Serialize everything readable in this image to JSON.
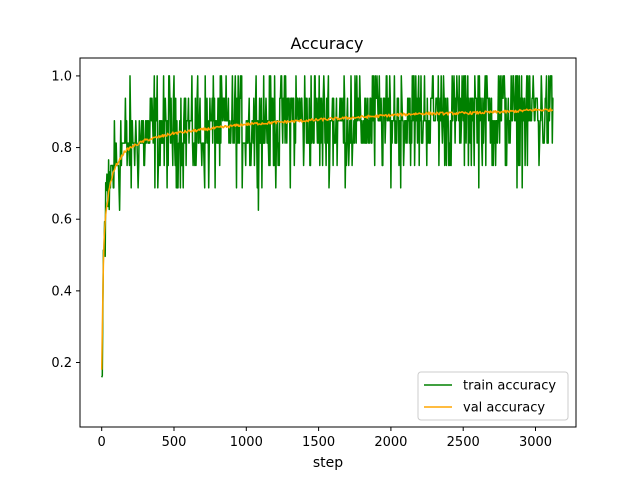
{
  "chart_data": {
    "type": "line",
    "title": "Accuracy",
    "xlabel": "step",
    "ylabel": "",
    "xlim": [
      -150,
      3280
    ],
    "ylim": [
      0.02,
      1.05
    ],
    "xticks": [
      0,
      500,
      1000,
      1500,
      2000,
      2500,
      3000
    ],
    "yticks": [
      0.2,
      0.4,
      0.6,
      0.8,
      1.0
    ],
    "xtick_labels": [
      "0",
      "500",
      "1000",
      "1500",
      "2000",
      "2500",
      "3000"
    ],
    "ytick_labels": [
      "0.2",
      "0.4",
      "0.6",
      "0.8",
      "1.0"
    ],
    "grid": false,
    "legend_position": "lower-right",
    "series": [
      {
        "name": "train accuracy",
        "color": "#008000",
        "noisy": true,
        "x": [
          0,
          10,
          20,
          30,
          40,
          50,
          60,
          80,
          100,
          130,
          160,
          200,
          250,
          300,
          400,
          500,
          600,
          700,
          800,
          900,
          1000,
          1200,
          1400,
          1600,
          1800,
          2000,
          2200,
          2400,
          2600,
          2800,
          3000,
          3125
        ],
        "values": [
          0.12,
          0.35,
          0.55,
          0.62,
          0.66,
          0.7,
          0.72,
          0.75,
          0.77,
          0.79,
          0.8,
          0.81,
          0.82,
          0.83,
          0.84,
          0.84,
          0.85,
          0.85,
          0.855,
          0.86,
          0.865,
          0.87,
          0.875,
          0.875,
          0.88,
          0.885,
          0.89,
          0.89,
          0.895,
          0.9,
          0.9,
          0.9
        ]
      },
      {
        "name": "val accuracy",
        "color": "#ffa500",
        "noisy": false,
        "x": [
          0,
          10,
          20,
          30,
          40,
          50,
          60,
          80,
          100,
          130,
          160,
          200,
          250,
          300,
          400,
          500,
          600,
          700,
          800,
          900,
          1000,
          1200,
          1400,
          1600,
          1800,
          2000,
          2200,
          2400,
          2600,
          2800,
          3000,
          3125
        ],
        "values": [
          0.18,
          0.45,
          0.58,
          0.62,
          0.65,
          0.68,
          0.7,
          0.73,
          0.75,
          0.77,
          0.79,
          0.8,
          0.81,
          0.82,
          0.83,
          0.84,
          0.845,
          0.85,
          0.855,
          0.86,
          0.865,
          0.87,
          0.875,
          0.88,
          0.885,
          0.89,
          0.895,
          0.895,
          0.897,
          0.9,
          0.905,
          0.905
        ]
      }
    ]
  }
}
